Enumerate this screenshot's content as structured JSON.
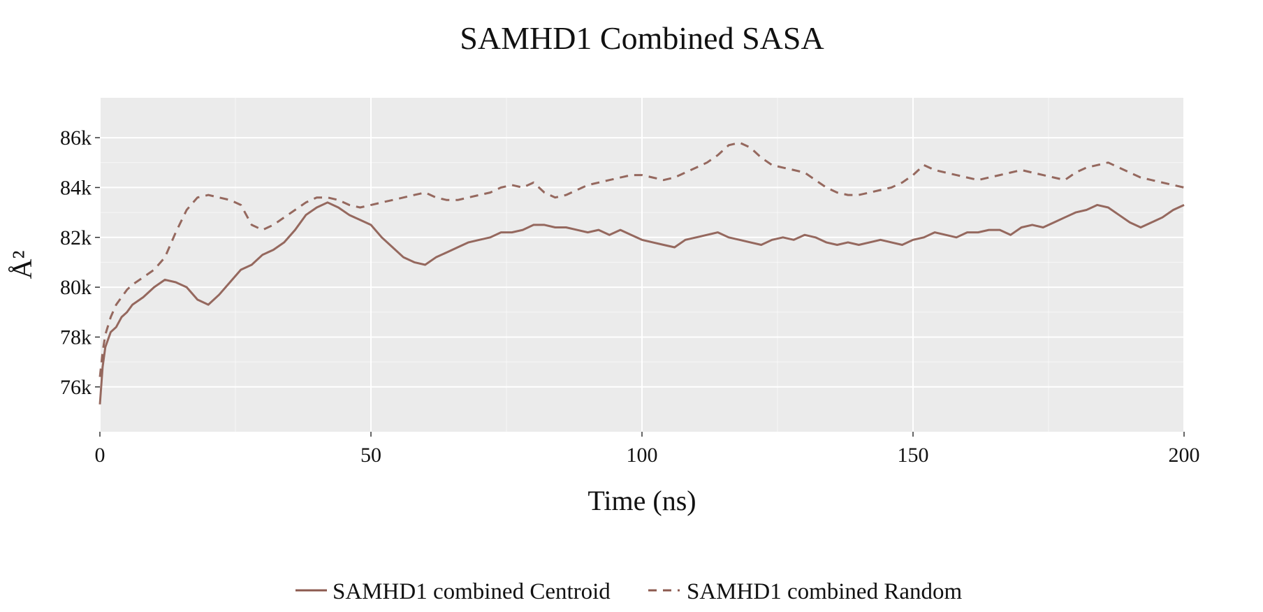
{
  "chart_data": {
    "type": "line",
    "title": "SAMHD1 Combined SASA",
    "xlabel": "Time (ns)",
    "ylabel": "Å²",
    "xlim": [
      0,
      200
    ],
    "ylim": [
      74200,
      87600
    ],
    "x_ticks": [
      0,
      50,
      100,
      150,
      200
    ],
    "x_tick_labels": [
      "0",
      "50",
      "100",
      "150",
      "200"
    ],
    "y_ticks": [
      76000,
      78000,
      80000,
      82000,
      84000,
      86000
    ],
    "y_tick_labels": [
      "76k",
      "78k",
      "80k",
      "82k",
      "84k",
      "86k"
    ],
    "grid": true,
    "panel_background": "#ebebeb",
    "grid_color": "#ffffff",
    "legend_position": "bottom",
    "series": [
      {
        "name": "SAMHD1 combined Centroid",
        "color": "#8c5a4f",
        "dash": "solid",
        "x": [
          0,
          0.5,
          1,
          2,
          3,
          4,
          5,
          6,
          8,
          10,
          12,
          14,
          16,
          18,
          20,
          22,
          24,
          26,
          28,
          30,
          32,
          34,
          36,
          38,
          40,
          42,
          44,
          46,
          48,
          50,
          52,
          54,
          56,
          58,
          60,
          62,
          64,
          66,
          68,
          70,
          72,
          74,
          76,
          78,
          80,
          82,
          84,
          86,
          88,
          90,
          92,
          94,
          96,
          98,
          100,
          102,
          104,
          106,
          108,
          110,
          112,
          114,
          116,
          118,
          120,
          122,
          124,
          126,
          128,
          130,
          132,
          134,
          136,
          138,
          140,
          142,
          144,
          146,
          148,
          150,
          152,
          154,
          156,
          158,
          160,
          162,
          164,
          166,
          168,
          170,
          172,
          174,
          176,
          178,
          180,
          182,
          184,
          186,
          188,
          190,
          192,
          194,
          196,
          198,
          200
        ],
        "y": [
          75300,
          76800,
          77600,
          78200,
          78400,
          78800,
          79000,
          79300,
          79600,
          80000,
          80300,
          80200,
          80000,
          79500,
          79300,
          79700,
          80200,
          80700,
          80900,
          81300,
          81500,
          81800,
          82300,
          82900,
          83200,
          83400,
          83200,
          82900,
          82700,
          82500,
          82000,
          81600,
          81200,
          81000,
          80900,
          81200,
          81400,
          81600,
          81800,
          81900,
          82000,
          82200,
          82200,
          82300,
          82500,
          82500,
          82400,
          82400,
          82300,
          82200,
          82300,
          82100,
          82300,
          82100,
          81900,
          81800,
          81700,
          81600,
          81900,
          82000,
          82100,
          82200,
          82000,
          81900,
          81800,
          81700,
          81900,
          82000,
          81900,
          82100,
          82000,
          81800,
          81700,
          81800,
          81700,
          81800,
          81900,
          81800,
          81700,
          81900,
          82000,
          82200,
          82100,
          82000,
          82200,
          82200,
          82300,
          82300,
          82100,
          82400,
          82500,
          82400,
          82600,
          82800,
          83000,
          83100,
          83300,
          83200,
          82900,
          82600,
          82400,
          82600,
          82800,
          83100,
          83300
        ]
      },
      {
        "name": "SAMHD1 combined Random",
        "color": "#8c5a4f",
        "dash": "dashed",
        "x": [
          0,
          0.5,
          1,
          2,
          3,
          4,
          5,
          6,
          8,
          10,
          12,
          14,
          16,
          18,
          20,
          22,
          24,
          26,
          28,
          30,
          32,
          34,
          36,
          38,
          40,
          42,
          44,
          46,
          48,
          50,
          52,
          54,
          56,
          58,
          60,
          62,
          64,
          66,
          68,
          70,
          72,
          74,
          76,
          78,
          80,
          82,
          84,
          86,
          88,
          90,
          92,
          94,
          96,
          98,
          100,
          102,
          104,
          106,
          108,
          110,
          112,
          114,
          116,
          118,
          120,
          122,
          124,
          126,
          128,
          130,
          132,
          134,
          136,
          138,
          140,
          142,
          144,
          146,
          148,
          150,
          152,
          154,
          156,
          158,
          160,
          162,
          164,
          166,
          168,
          170,
          172,
          174,
          176,
          178,
          180,
          182,
          184,
          186,
          188,
          190,
          192,
          194,
          196,
          198,
          200
        ],
        "y": [
          76400,
          77400,
          78100,
          78800,
          79300,
          79600,
          79900,
          80100,
          80400,
          80700,
          81200,
          82200,
          83100,
          83600,
          83700,
          83600,
          83500,
          83300,
          82500,
          82300,
          82500,
          82800,
          83100,
          83400,
          83600,
          83600,
          83500,
          83300,
          83200,
          83300,
          83400,
          83500,
          83600,
          83700,
          83800,
          83600,
          83500,
          83500,
          83600,
          83700,
          83800,
          84000,
          84100,
          84000,
          84200,
          83800,
          83600,
          83700,
          83900,
          84100,
          84200,
          84300,
          84400,
          84500,
          84500,
          84400,
          84300,
          84400,
          84600,
          84800,
          85000,
          85300,
          85700,
          85800,
          85600,
          85200,
          84900,
          84800,
          84700,
          84600,
          84300,
          84000,
          83800,
          83700,
          83700,
          83800,
          83900,
          84000,
          84200,
          84500,
          84900,
          84700,
          84600,
          84500,
          84400,
          84300,
          84400,
          84500,
          84600,
          84700,
          84600,
          84500,
          84400,
          84300,
          84600,
          84800,
          84900,
          85000,
          84800,
          84600,
          84400,
          84300,
          84200,
          84100,
          84000
        ]
      }
    ]
  }
}
